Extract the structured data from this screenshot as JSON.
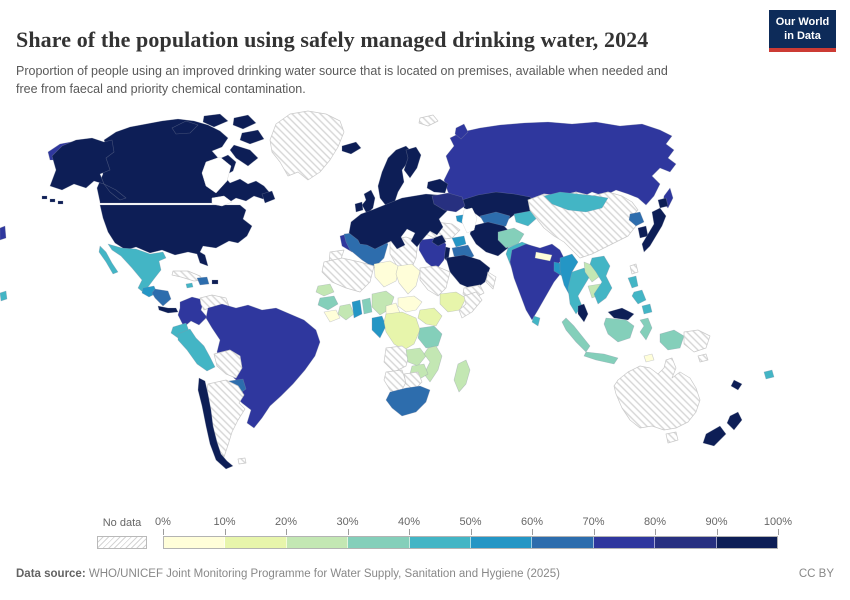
{
  "header": {
    "title": "Share of the population using safely managed drinking water, 2024",
    "subtitle": "Proportion of people using an improved drinking water source that is located on premises, available when needed and free from faecal and priority chemical contamination.",
    "logo": {
      "line1": "Our World",
      "line2": "in Data",
      "background": "#0d2b59",
      "accent": "#cc3b34"
    }
  },
  "legend": {
    "no_data_label": "No data",
    "tick_labels": [
      "0%",
      "10%",
      "20%",
      "30%",
      "40%",
      "50%",
      "60%",
      "70%",
      "80%",
      "90%",
      "100%"
    ],
    "bins": [
      {
        "range": "0-10%",
        "color": "#fffed9"
      },
      {
        "range": "10-20%",
        "color": "#e7f5ab"
      },
      {
        "range": "20-30%",
        "color": "#c3e7b3"
      },
      {
        "range": "30-40%",
        "color": "#84cfba"
      },
      {
        "range": "40-50%",
        "color": "#43b5c5"
      },
      {
        "range": "50-60%",
        "color": "#2496c5"
      },
      {
        "range": "60-70%",
        "color": "#2d6dad"
      },
      {
        "range": "70-80%",
        "color": "#2f379e"
      },
      {
        "range": "80-90%",
        "color": "#273080"
      },
      {
        "range": "90-100%",
        "color": "#0d1e56"
      }
    ]
  },
  "footer": {
    "source_label": "Data source:",
    "source_text": " WHO/UNICEF Joint Monitoring Programme for Water Supply, Sanitation and Hygiene (2025)",
    "license": "CC BY"
  },
  "chart_data": {
    "type": "choropleth",
    "title": "Share of the population using safely managed drinking water",
    "year": 2024,
    "unit": "% of population",
    "legend_position": "bottom",
    "no_data_style": "gray diagonal hatching",
    "regions": [
      {
        "id": "canada",
        "name": "Canada",
        "value": "90-100%"
      },
      {
        "id": "usa",
        "name": "United States",
        "value": "90-100%"
      },
      {
        "id": "greenland",
        "name": "Greenland",
        "value": "No data"
      },
      {
        "id": "mexico",
        "name": "Mexico",
        "value": "40-50%"
      },
      {
        "id": "guatemala",
        "name": "Guatemala",
        "value": "50-60%"
      },
      {
        "id": "honduras-nicaragua",
        "name": "Honduras & Nicaragua",
        "value": "60-70%"
      },
      {
        "id": "costa-rica-panama",
        "name": "Costa Rica & Panama",
        "value": "90-100%"
      },
      {
        "id": "cuba",
        "name": "Cuba",
        "value": "No data"
      },
      {
        "id": "hispaniola",
        "name": "Dominican Republic",
        "value": "60-70%"
      },
      {
        "id": "jamaica",
        "name": "Jamaica",
        "value": "40-50%"
      },
      {
        "id": "puerto-rico",
        "name": "Puerto Rico",
        "value": "90-100%"
      },
      {
        "id": "colombia",
        "name": "Colombia",
        "value": "70-80%"
      },
      {
        "id": "venezuela",
        "name": "Venezuela",
        "value": "No data"
      },
      {
        "id": "guyana",
        "name": "Guyana",
        "value": "60-70%"
      },
      {
        "id": "suriname",
        "name": "Suriname",
        "value": "40-50%"
      },
      {
        "id": "french-guiana",
        "name": "French Guiana",
        "value": "90-100%"
      },
      {
        "id": "ecuador",
        "name": "Ecuador",
        "value": "40-50%"
      },
      {
        "id": "peru",
        "name": "Peru",
        "value": "40-50%"
      },
      {
        "id": "brazil",
        "name": "Brazil",
        "value": "70-80%"
      },
      {
        "id": "bolivia",
        "name": "Bolivia",
        "value": "No data"
      },
      {
        "id": "paraguay",
        "name": "Paraguay",
        "value": "60-70%"
      },
      {
        "id": "chile",
        "name": "Chile",
        "value": "90-100%"
      },
      {
        "id": "argentina",
        "name": "Argentina",
        "value": "No data"
      },
      {
        "id": "falkland",
        "name": "Falkland Islands",
        "value": "No data"
      },
      {
        "id": "iceland",
        "name": "Iceland",
        "value": "90-100%"
      },
      {
        "id": "uk",
        "name": "United Kingdom",
        "value": "90-100%"
      },
      {
        "id": "ireland",
        "name": "Ireland",
        "value": "90-100%"
      },
      {
        "id": "scandinavia",
        "name": "Norway & Sweden",
        "value": "90-100%"
      },
      {
        "id": "finland",
        "name": "Finland",
        "value": "90-100%"
      },
      {
        "id": "denmark",
        "name": "Denmark",
        "value": "90-100%"
      },
      {
        "id": "europe",
        "name": "Western & Central Europe",
        "value": "90-100%"
      },
      {
        "id": "greece",
        "name": "Greece",
        "value": "90-100%"
      },
      {
        "id": "baltics-belarus",
        "name": "Baltics & Belarus",
        "value": "90-100%"
      },
      {
        "id": "ukraine",
        "name": "Ukraine",
        "value": "80-90%"
      },
      {
        "id": "svalbard",
        "name": "Svalbard",
        "value": "No data"
      },
      {
        "id": "russia",
        "name": "Russia",
        "value": "70-80%"
      },
      {
        "id": "kazakhstan",
        "name": "Kazakhstan",
        "value": "90-100%"
      },
      {
        "id": "uzbekistan",
        "name": "Uzbekistan",
        "value": "60-70%"
      },
      {
        "id": "turkmenistan",
        "name": "Turkmenistan",
        "value": "70-80%"
      },
      {
        "id": "kyrgyzstan-tajikistan",
        "name": "Kyrgyzstan & Tajikistan",
        "value": "40-50%"
      },
      {
        "id": "caucasus",
        "name": "Georgia & Azerbaijan",
        "value": "50-60%"
      },
      {
        "id": "turkey",
        "name": "Turkey",
        "value": "No data"
      },
      {
        "id": "syria",
        "name": "Syria",
        "value": "50-60%"
      },
      {
        "id": "iraq",
        "name": "Iraq",
        "value": "60-70%"
      },
      {
        "id": "israel-jordan",
        "name": "Israel & Jordan",
        "value": "90-100%"
      },
      {
        "id": "saudi-arabia",
        "name": "Saudi Arabia",
        "value": "90-100%"
      },
      {
        "id": "yemen",
        "name": "Yemen",
        "value": "No data"
      },
      {
        "id": "oman",
        "name": "Oman",
        "value": "No data"
      },
      {
        "id": "iran",
        "name": "Iran",
        "value": "90-100%"
      },
      {
        "id": "afghanistan",
        "name": "Afghanistan",
        "value": "30-40%"
      },
      {
        "id": "pakistan",
        "name": "Pakistan",
        "value": "40-50%"
      },
      {
        "id": "india",
        "name": "India",
        "value": "70-80%"
      },
      {
        "id": "nepal",
        "name": "Nepal",
        "value": "0-10%"
      },
      {
        "id": "bangladesh",
        "name": "Bangladesh",
        "value": "50-60%"
      },
      {
        "id": "sri-lanka",
        "name": "Sri Lanka",
        "value": "40-50%"
      },
      {
        "id": "china",
        "name": "China",
        "value": "No data"
      },
      {
        "id": "mongolia",
        "name": "Mongolia",
        "value": "40-50%"
      },
      {
        "id": "north-korea",
        "name": "North Korea",
        "value": "60-70%"
      },
      {
        "id": "south-korea",
        "name": "South Korea",
        "value": "90-100%"
      },
      {
        "id": "japan",
        "name": "Japan",
        "value": "90-100%"
      },
      {
        "id": "taiwan",
        "name": "Taiwan",
        "value": "No data"
      },
      {
        "id": "myanmar",
        "name": "Myanmar",
        "value": "50-60%"
      },
      {
        "id": "thailand",
        "name": "Thailand",
        "value": "40-50%"
      },
      {
        "id": "laos",
        "name": "Laos",
        "value": "20-30%"
      },
      {
        "id": "cambodia",
        "name": "Cambodia",
        "value": "20-30%"
      },
      {
        "id": "vietnam",
        "name": "Vietnam",
        "value": "40-50%"
      },
      {
        "id": "malaysia",
        "name": "Malaysia",
        "value": "90-100%"
      },
      {
        "id": "indonesia",
        "name": "Indonesia",
        "value": "30-40%"
      },
      {
        "id": "philippines",
        "name": "Philippines",
        "value": "40-50%"
      },
      {
        "id": "timor",
        "name": "Timor-Leste",
        "value": "0-10%"
      },
      {
        "id": "png",
        "name": "Papua New Guinea",
        "value": "No data"
      },
      {
        "id": "australia",
        "name": "Australia",
        "value": "No data"
      },
      {
        "id": "tasmania",
        "name": "Tasmania",
        "value": "No data"
      },
      {
        "id": "new-zealand",
        "name": "New Zealand",
        "value": "90-100%"
      },
      {
        "id": "new-caledonia",
        "name": "New Caledonia",
        "value": "90-100%"
      },
      {
        "id": "fiji",
        "name": "Fiji",
        "value": "40-50%"
      },
      {
        "id": "solomon",
        "name": "Solomon Islands",
        "value": "No data"
      },
      {
        "id": "morocco",
        "name": "Morocco",
        "value": "70-80%"
      },
      {
        "id": "western-sahara",
        "name": "Western Sahara",
        "value": "No data"
      },
      {
        "id": "algeria",
        "name": "Algeria",
        "value": "60-70%"
      },
      {
        "id": "tunisia",
        "name": "Tunisia",
        "value": "60-70%"
      },
      {
        "id": "libya",
        "name": "Libya",
        "value": "No data"
      },
      {
        "id": "egypt",
        "name": "Egypt",
        "value": "70-80%"
      },
      {
        "id": "mauritania-mali",
        "name": "Mauritania & Mali",
        "value": "No data"
      },
      {
        "id": "niger",
        "name": "Niger",
        "value": "0-10%"
      },
      {
        "id": "chad",
        "name": "Chad",
        "value": "0-10%"
      },
      {
        "id": "sudan",
        "name": "Sudan",
        "value": "No data"
      },
      {
        "id": "ethiopia",
        "name": "Ethiopia",
        "value": "10-20%"
      },
      {
        "id": "somalia",
        "name": "Somalia",
        "value": "No data"
      },
      {
        "id": "senegal",
        "name": "Senegal",
        "value": "20-30%"
      },
      {
        "id": "guinea",
        "name": "Guinea",
        "value": "30-40%"
      },
      {
        "id": "sierra-leone-liberia",
        "name": "Sierra Leone & Liberia",
        "value": "0-10%"
      },
      {
        "id": "cote-divoire",
        "name": "Côte d'Ivoire",
        "value": "20-30%"
      },
      {
        "id": "ghana",
        "name": "Ghana",
        "value": "50-60%"
      },
      {
        "id": "togo-benin",
        "name": "Togo & Benin",
        "value": "30-40%"
      },
      {
        "id": "nigeria",
        "name": "Nigeria",
        "value": "20-30%"
      },
      {
        "id": "cameroon",
        "name": "Cameroon",
        "value": "0-10%"
      },
      {
        "id": "car",
        "name": "Central African Republic",
        "value": "0-10%"
      },
      {
        "id": "gabon-congo",
        "name": "Gabon & Congo",
        "value": "50-60%"
      },
      {
        "id": "drc",
        "name": "Democratic Republic of Congo",
        "value": "10-20%"
      },
      {
        "id": "uganda-kenya",
        "name": "Uganda & Kenya",
        "value": "10-20%"
      },
      {
        "id": "tanzania",
        "name": "Tanzania",
        "value": "30-40%"
      },
      {
        "id": "angola",
        "name": "Angola",
        "value": "No data"
      },
      {
        "id": "zambia",
        "name": "Zambia",
        "value": "20-30%"
      },
      {
        "id": "malawi-mozambique",
        "name": "Malawi & Mozambique",
        "value": "20-30%"
      },
      {
        "id": "zimbabwe",
        "name": "Zimbabwe",
        "value": "20-30%"
      },
      {
        "id": "namibia",
        "name": "Namibia",
        "value": "No data"
      },
      {
        "id": "botswana",
        "name": "Botswana",
        "value": "No data"
      },
      {
        "id": "south-africa",
        "name": "South Africa",
        "value": "60-70%"
      },
      {
        "id": "madagascar",
        "name": "Madagascar",
        "value": "20-30%"
      }
    ]
  }
}
